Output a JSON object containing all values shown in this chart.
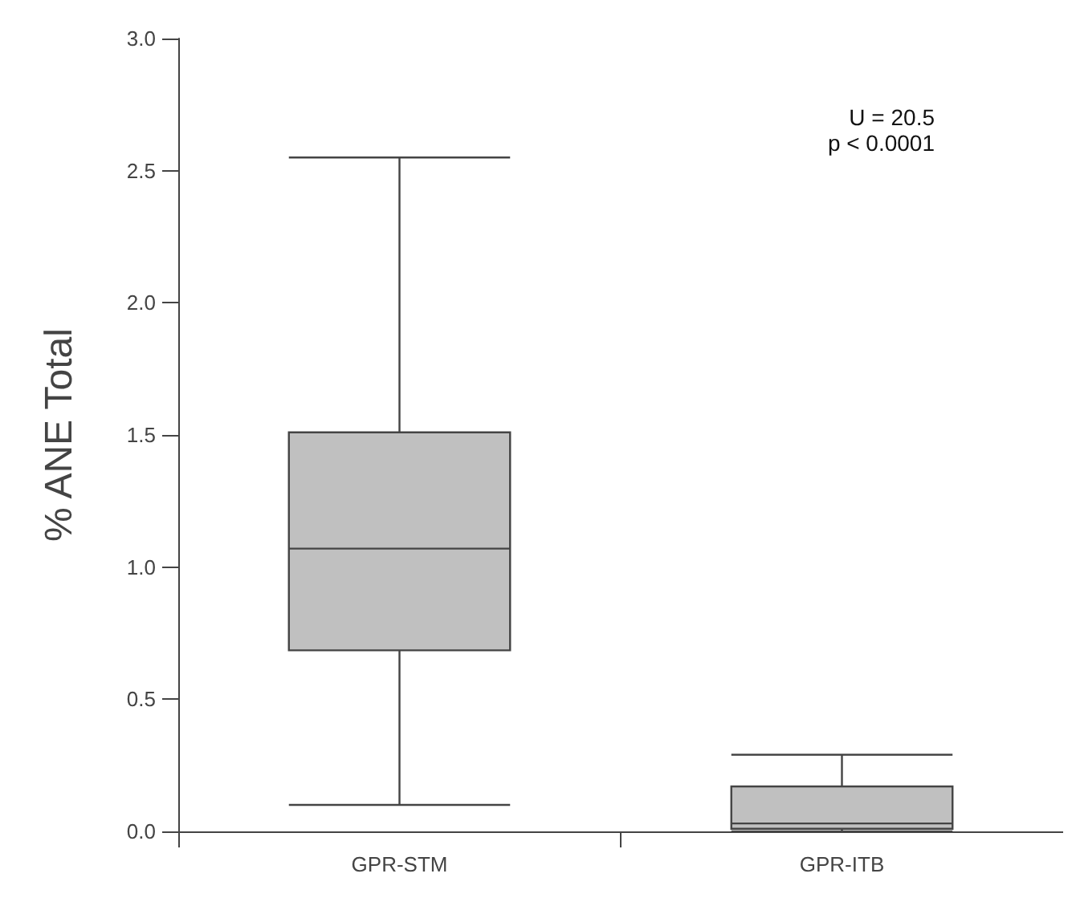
{
  "chart_data": {
    "type": "box",
    "ylabel": "% ANE Total",
    "categories": [
      "GPR-STM",
      "GPR-ITB"
    ],
    "boxes": [
      {
        "low": 0.1,
        "q1": 0.685,
        "median": 1.07,
        "q3": 1.51,
        "high": 2.55
      },
      {
        "low": 0.0,
        "q1": 0.01,
        "median": 0.03,
        "q3": 0.17,
        "high": 0.29
      }
    ],
    "color": "#c0c0c0",
    "ylim": [
      0,
      3
    ],
    "yticks": [
      {
        "value": 0,
        "label": "0.0"
      },
      0.5,
      {
        "value": 1,
        "label": "1.0"
      },
      1.5,
      {
        "value": 2,
        "label": "2.0"
      },
      2.5,
      {
        "value": 3,
        "label": "3.0"
      }
    ],
    "grid": false,
    "annotations": [
      "U = 20.5",
      "p < 0.0001"
    ]
  }
}
